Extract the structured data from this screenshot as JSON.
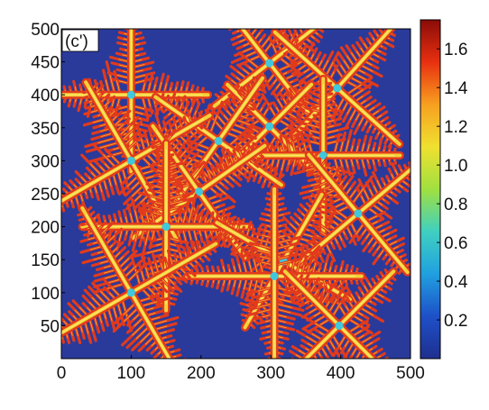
{
  "chart_data": {
    "type": "heatmap",
    "panel_label": "(c')",
    "xlim": [
      0,
      500
    ],
    "ylim": [
      0,
      500
    ],
    "x_ticks": [
      "0",
      "100",
      "200",
      "300",
      "400",
      "500"
    ],
    "y_ticks": [
      "50",
      "100",
      "150",
      "200",
      "250",
      "300",
      "350",
      "400",
      "450",
      "500"
    ],
    "colorbar": {
      "range": [
        0,
        1.75
      ],
      "tick_labels": [
        "0.2",
        "0.4",
        "0.6",
        "0.8",
        "1.0",
        "1.2",
        "1.4",
        "1.6"
      ],
      "colors": [
        "#1f2f8f",
        "#1e50c8",
        "#20a0e0",
        "#40d0c0",
        "#a0e040",
        "#f0e030",
        "#f7a020",
        "#e83010",
        "#8a0c08"
      ]
    },
    "colors": {
      "background": "#2a3a9a",
      "field": "#e23a1c",
      "arm": "#f2d23a",
      "arm_core": "#ffe566",
      "seed": "#3fc8dc"
    },
    "crystals": [
      {
        "x": 100,
        "y": 400,
        "angle": 0,
        "arm": 110
      },
      {
        "x": 298,
        "y": 448,
        "angle": 38,
        "arm": 100
      },
      {
        "x": 395,
        "y": 410,
        "angle": 48,
        "arm": 120
      },
      {
        "x": 298,
        "y": 352,
        "angle": 45,
        "arm": 85
      },
      {
        "x": 225,
        "y": 330,
        "angle": 55,
        "arm": 110
      },
      {
        "x": 375,
        "y": 308,
        "angle": 0,
        "arm": 110
      },
      {
        "x": 100,
        "y": 300,
        "angle": 30,
        "arm": 130
      },
      {
        "x": 197,
        "y": 253,
        "angle": 35,
        "arm": 115
      },
      {
        "x": 425,
        "y": 220,
        "angle": 40,
        "arm": 110
      },
      {
        "x": 150,
        "y": 200,
        "angle": 0,
        "arm": 120
      },
      {
        "x": 318,
        "y": 148,
        "angle": 60,
        "arm": 110
      },
      {
        "x": 305,
        "y": 125,
        "angle": 0,
        "arm": 125
      },
      {
        "x": 100,
        "y": 100,
        "angle": 30,
        "arm": 140
      },
      {
        "x": 398,
        "y": 50,
        "angle": 45,
        "arm": 110
      }
    ]
  }
}
